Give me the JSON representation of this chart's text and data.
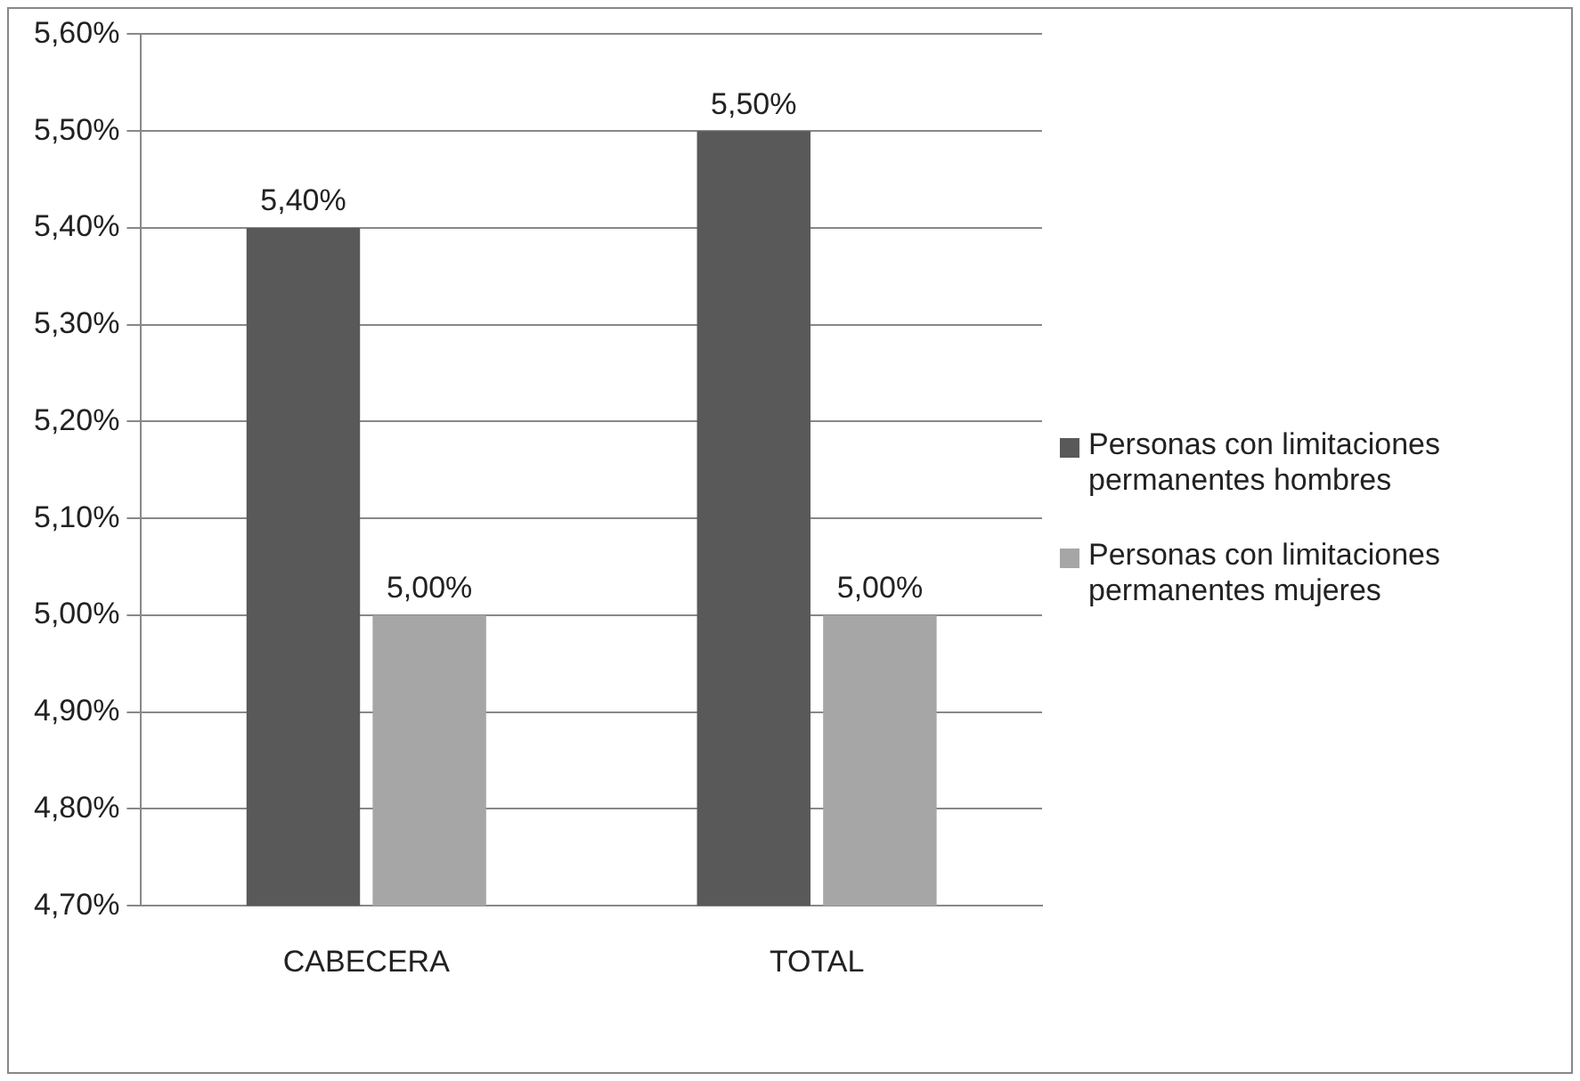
{
  "chart_data": {
    "type": "bar",
    "categories": [
      "CABECERA",
      "TOTAL"
    ],
    "series": [
      {
        "name": "Personas con limitaciones permanentes hombres",
        "color": "#595959",
        "values": [
          5.4,
          5.5
        ],
        "value_labels": [
          "5,40%",
          "5,50%"
        ]
      },
      {
        "name": "Personas con limitaciones permanentes mujeres",
        "color": "#a6a6a6",
        "values": [
          5.0,
          5.0
        ],
        "value_labels": [
          "5,00%",
          "5,00%"
        ]
      }
    ],
    "ylim": [
      4.7,
      5.6
    ],
    "yticks": [
      {
        "value": 4.7,
        "label": "4,70%"
      },
      {
        "value": 4.8,
        "label": "4,80%"
      },
      {
        "value": 4.9,
        "label": "4,90%"
      },
      {
        "value": 5.0,
        "label": "5,00%"
      },
      {
        "value": 5.1,
        "label": "5,10%"
      },
      {
        "value": 5.2,
        "label": "5,20%"
      },
      {
        "value": 5.3,
        "label": "5,30%"
      },
      {
        "value": 5.4,
        "label": "5,40%"
      },
      {
        "value": 5.5,
        "label": "5,50%"
      },
      {
        "value": 5.6,
        "label": "5,60%"
      }
    ],
    "grid": "y",
    "legend": "right"
  }
}
